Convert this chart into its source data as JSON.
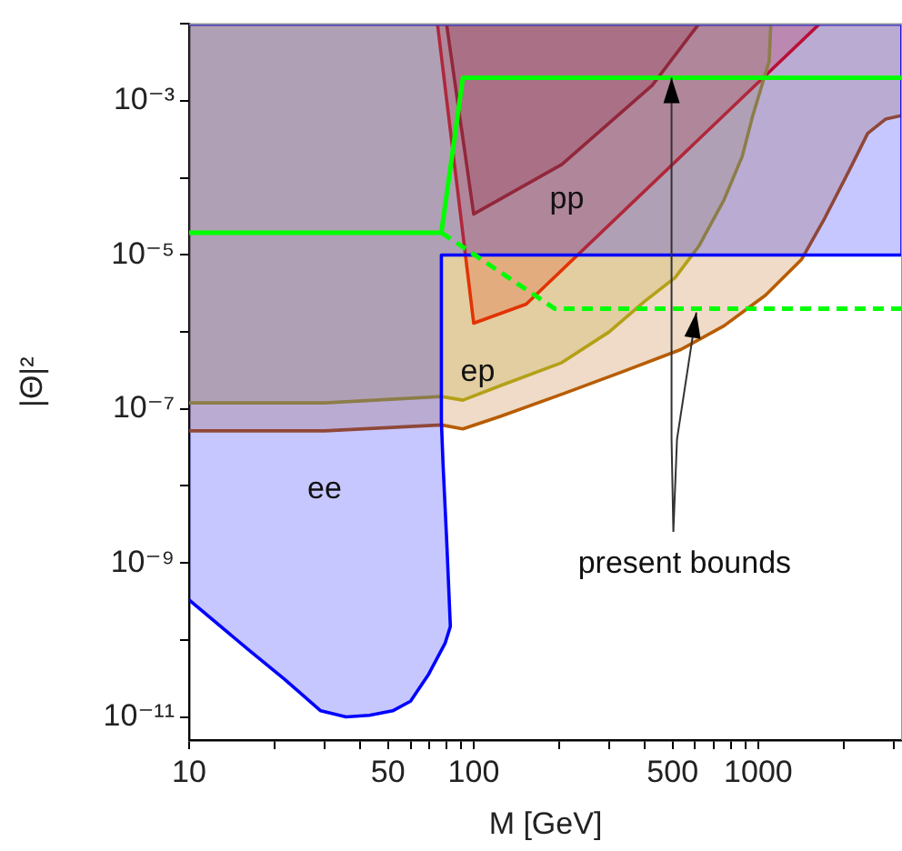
{
  "chart_data": {
    "type": "area",
    "xlabel": "M [GeV]",
    "ylabel": "|Θ|²",
    "log": "xy",
    "grid": false,
    "legend": false,
    "xlim": [
      10,
      3200
    ],
    "ylim": [
      5e-12,
      0.01
    ],
    "xticks": [
      10,
      {
        "value": 20,
        "label": null
      },
      {
        "value": 30,
        "label": null
      },
      {
        "value": 40,
        "label": null
      },
      50,
      {
        "value": 60,
        "label": null
      },
      {
        "value": 70,
        "label": null
      },
      {
        "value": 80,
        "label": null
      },
      {
        "value": 90,
        "label": null
      },
      100,
      {
        "value": 200,
        "label": null
      },
      {
        "value": 300,
        "label": null
      },
      {
        "value": 400,
        "label": null
      },
      500,
      {
        "value": 600,
        "label": null
      },
      {
        "value": 700,
        "label": null
      },
      {
        "value": 800,
        "label": null
      },
      {
        "value": 900,
        "label": null
      },
      1000,
      {
        "value": 2000,
        "label": null
      },
      {
        "value": 3000,
        "label": null
      }
    ],
    "yticks": [
      {
        "value": 0.01,
        "label": null
      },
      {
        "value": 0.001,
        "label": "10⁻³"
      },
      {
        "value": 0.0001,
        "label": null
      },
      {
        "value": 1e-05,
        "label": "10⁻⁵"
      },
      {
        "value": 1e-06,
        "label": null
      },
      {
        "value": 1e-07,
        "label": "10⁻⁷"
      },
      {
        "value": 1e-08,
        "label": null
      },
      {
        "value": 1e-09,
        "label": "10⁻⁹"
      },
      {
        "value": 1e-10,
        "label": null
      },
      {
        "value": 1e-11,
        "label": "10⁻¹¹"
      }
    ],
    "series": [
      {
        "color": "#0000ff",
        "x": [
          10,
          16.2,
          21.6,
          29,
          35.6,
          43,
          51.9,
          60,
          69.5,
          79.3,
          82.8,
          80.4,
          78,
          77,
          77,
          3200,
          3200,
          10
        ],
        "values": [
          3.3e-10,
          7.4e-11,
          3.1e-11,
          1.2e-11,
          1e-11,
          1.05e-11,
          1.2e-11,
          1.6e-11,
          3.6e-11,
          9e-11,
          1.5e-10,
          1.9e-09,
          2e-08,
          6.9e-08,
          1e-05,
          1e-05,
          0.01,
          0.01
        ]
      },
      {
        "color": "#b85c00",
        "x": [
          10,
          30,
          77,
          91.6,
          124,
          204,
          330,
          534,
          758,
          1060,
          1418,
          1712,
          2098,
          2425,
          2800,
          3200,
          3200,
          10
        ],
        "values": [
          5.2e-08,
          5.2e-08,
          6.2e-08,
          5.5e-08,
          8e-08,
          1.55e-07,
          3e-07,
          5.9e-07,
          1.2e-06,
          3e-06,
          8.7e-06,
          3e-05,
          0.00013,
          0.00038,
          0.00058,
          0.00065,
          0.01,
          0.01
        ]
      },
      {
        "color": "#b4b41e",
        "x": [
          10,
          30,
          77,
          91.6,
          124,
          204,
          299,
          399,
          511,
          618,
          758,
          878,
          957,
          1030,
          1092,
          1107,
          10
        ],
        "values": [
          1.2e-07,
          1.2e-07,
          1.45e-07,
          1.3e-07,
          2e-07,
          4e-07,
          1e-06,
          2.5e-06,
          5.1e-06,
          1.3e-05,
          5.2e-05,
          0.00019,
          0.00065,
          0.0016,
          0.0033,
          0.01,
          0.01
        ]
      },
      {
        "color": "#ff0000",
        "x": [
          74.6,
          100,
          153,
          1640
        ],
        "values": [
          0.01,
          1.3e-06,
          2.3e-06,
          0.01
        ]
      },
      {
        "color": "#b00000",
        "x": [
          80.3,
          100,
          204,
          424,
          618
        ],
        "values": [
          0.01,
          3.4e-05,
          0.00015,
          0.0016,
          0.01
        ]
      },
      {
        "type": "line",
        "color": "#00ff00",
        "x": [
          10,
          77,
          91.6,
          3200
        ],
        "values": [
          1.95e-05,
          1.95e-05,
          0.002,
          0.002
        ]
      },
      {
        "type": "line",
        "color": "#00ff00",
        "line_style": "dashed",
        "x": [
          77,
          193,
          3200
        ],
        "values": [
          1.95e-05,
          2e-06,
          2e-06
        ]
      }
    ],
    "annotations": [
      "pp",
      "ep",
      "ee",
      "present bounds"
    ]
  }
}
